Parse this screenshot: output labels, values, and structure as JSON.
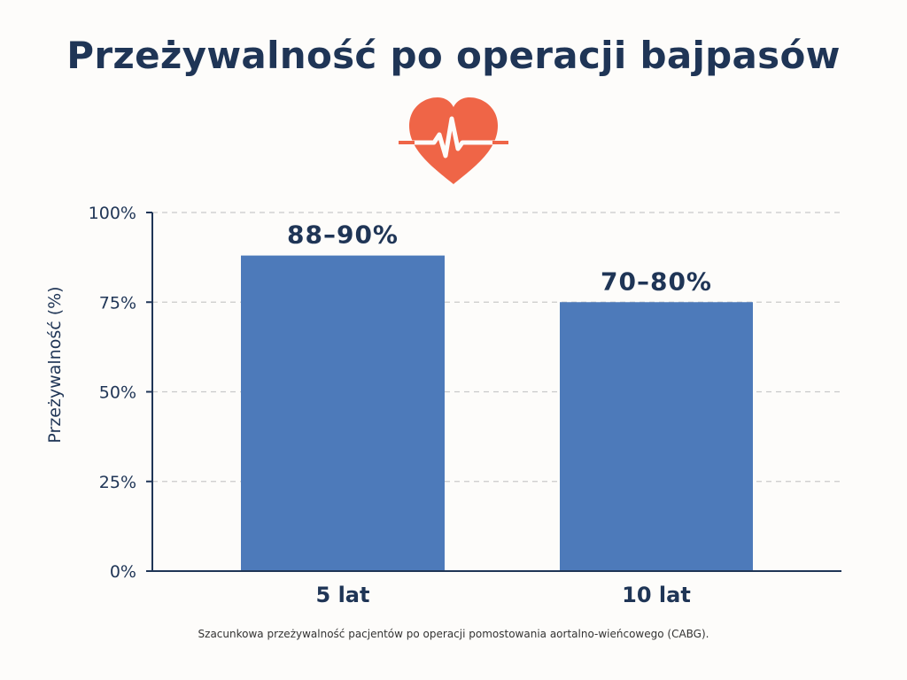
{
  "title": "Przeżywalność po operacji bajpasów",
  "caption": "Szacunkowa przeżywalność pacjentów po operacji pomostowania aortalno-wieńcowego (CABG).",
  "icon": "heart-pulse-icon",
  "colors": {
    "bar": "#4d7aba",
    "heart": "#ef6547",
    "text": "#1f3556",
    "axis": "#1f3556",
    "grid": "#c9c9c9"
  },
  "chart_data": {
    "type": "bar",
    "categories": [
      "5 lat",
      "10 lat"
    ],
    "values": [
      88,
      75
    ],
    "data_labels": [
      "88–90%",
      "70–80%"
    ],
    "ylabel": "Przeżywalność (%)",
    "ylim": [
      0,
      100
    ],
    "yticks": [
      0,
      25,
      50,
      75,
      100
    ],
    "ytick_labels": [
      "0%",
      "25%",
      "50%",
      "75%",
      "100%"
    ],
    "grid": true,
    "legend": false
  }
}
